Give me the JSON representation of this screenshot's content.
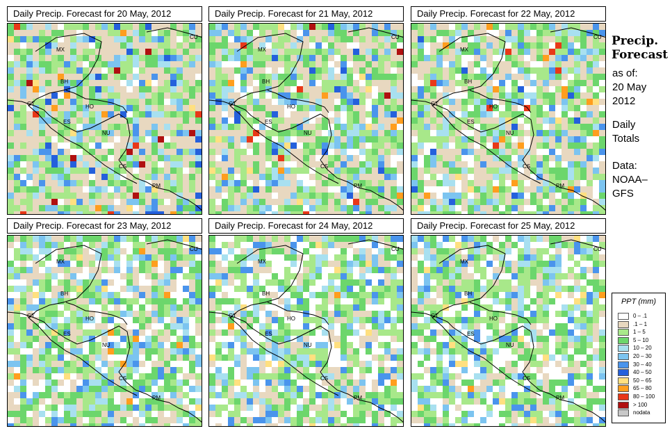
{
  "panels": [
    {
      "title": "Daily Precip. Forecast for  20 May, 2012",
      "intensity": 1.0
    },
    {
      "title": "Daily Precip. Forecast for  21 May, 2012",
      "intensity": 0.9
    },
    {
      "title": "Daily Precip. Forecast for  22 May, 2012",
      "intensity": 0.75
    },
    {
      "title": "Daily Precip. Forecast for  23 May, 2012",
      "intensity": 0.45
    },
    {
      "title": "Daily Precip. Forecast for  24 May, 2012",
      "intensity": 0.35
    },
    {
      "title": "Daily Precip. Forecast for  25 May, 2012",
      "intensity": 0.3
    }
  ],
  "sidebar": {
    "title_line1": "Precip.",
    "title_line2": "Forecast",
    "asof_label": "as of:",
    "asof_date1": "20 May",
    "asof_date2": "2012",
    "totals1": "Daily",
    "totals2": "Totals",
    "data1": "Data:",
    "data2": "NOAA–",
    "data3": "GFS"
  },
  "region_labels": [
    "MX",
    "CU",
    "BH",
    "GT",
    "HO",
    "ES",
    "NU",
    "CS",
    "PM"
  ],
  "legend": {
    "title": "PPT (mm)",
    "items": [
      {
        "label": "0 – .1",
        "color": "#ffffff"
      },
      {
        "label": ".1 – 1",
        "color": "#e8d8c0"
      },
      {
        "label": "1 – 5",
        "color": "#a8e88a"
      },
      {
        "label": "5 – 10",
        "color": "#6cd66c"
      },
      {
        "label": "10 – 20",
        "color": "#a8e0f0"
      },
      {
        "label": "20 – 30",
        "color": "#7cc4f0"
      },
      {
        "label": "30 – 40",
        "color": "#4a94ec"
      },
      {
        "label": "40 – 50",
        "color": "#2460dc"
      },
      {
        "label": "50 – 65",
        "color": "#ffe080"
      },
      {
        "label": "65 – 80",
        "color": "#ff9e1e"
      },
      {
        "label": "80 – 100",
        "color": "#e83818"
      },
      {
        "label": "> 100",
        "color": "#b01010"
      },
      {
        "label": "nodata",
        "color": "#c8c8c8"
      }
    ]
  }
}
